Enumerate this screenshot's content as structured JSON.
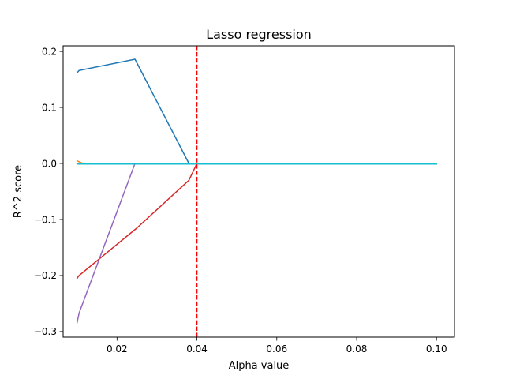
{
  "chart_data": {
    "type": "line",
    "title": "Lasso regression",
    "xlabel": "Alpha value",
    "ylabel": "R^2 score",
    "xlim": [
      0.0065,
      0.1045
    ],
    "ylim": [
      -0.31,
      0.21
    ],
    "xticks": [
      0.02,
      0.04,
      0.06,
      0.08,
      0.1
    ],
    "xtick_labels": [
      "0.02",
      "0.04",
      "0.06",
      "0.08",
      "0.10"
    ],
    "yticks": [
      -0.3,
      -0.2,
      -0.1,
      0.0,
      0.1,
      0.2
    ],
    "ytick_labels": [
      "−0.3",
      "−0.2",
      "−0.1",
      "0.0",
      "0.1",
      "0.2"
    ],
    "grid": false,
    "vline": {
      "x": 0.04,
      "color": "#ff0000",
      "style": "dashed"
    },
    "series": [
      {
        "color": "#1f77b4",
        "x": [
          0.01,
          0.0105,
          0.0245,
          0.038,
          0.04,
          0.1
        ],
        "y": [
          0.162,
          0.166,
          0.186,
          0.0,
          0.0,
          0.0
        ]
      },
      {
        "color": "#ff7f0e",
        "x": [
          0.01,
          0.0105,
          0.0115,
          0.1
        ],
        "y": [
          0.005,
          0.003,
          0.0,
          0.0
        ]
      },
      {
        "color": "#2ca02c",
        "x": [
          0.01,
          0.1
        ],
        "y": [
          0.0,
          0.0
        ]
      },
      {
        "color": "#d62728",
        "x": [
          0.01,
          0.0105,
          0.025,
          0.038,
          0.04,
          0.1
        ],
        "y": [
          -0.205,
          -0.2,
          -0.115,
          -0.03,
          0.0,
          0.0
        ]
      },
      {
        "color": "#9467bd",
        "x": [
          0.01,
          0.0105,
          0.0245,
          0.1
        ],
        "y": [
          -0.284,
          -0.267,
          0.0,
          0.0
        ]
      },
      {
        "color": "#8c564b",
        "x": [
          0.01,
          0.1
        ],
        "y": [
          0.0,
          0.0
        ]
      },
      {
        "color": "#e377c2",
        "x": [
          0.01,
          0.1
        ],
        "y": [
          0.0,
          0.0
        ]
      },
      {
        "color": "#7f7f7f",
        "x": [
          0.01,
          0.1
        ],
        "y": [
          0.0,
          0.0
        ]
      },
      {
        "color": "#bcbd22",
        "x": [
          0.01,
          0.1
        ],
        "y": [
          0.0,
          0.0
        ]
      },
      {
        "color": "#17becf",
        "x": [
          0.01,
          0.1
        ],
        "y": [
          -0.001,
          -0.001
        ]
      }
    ]
  }
}
